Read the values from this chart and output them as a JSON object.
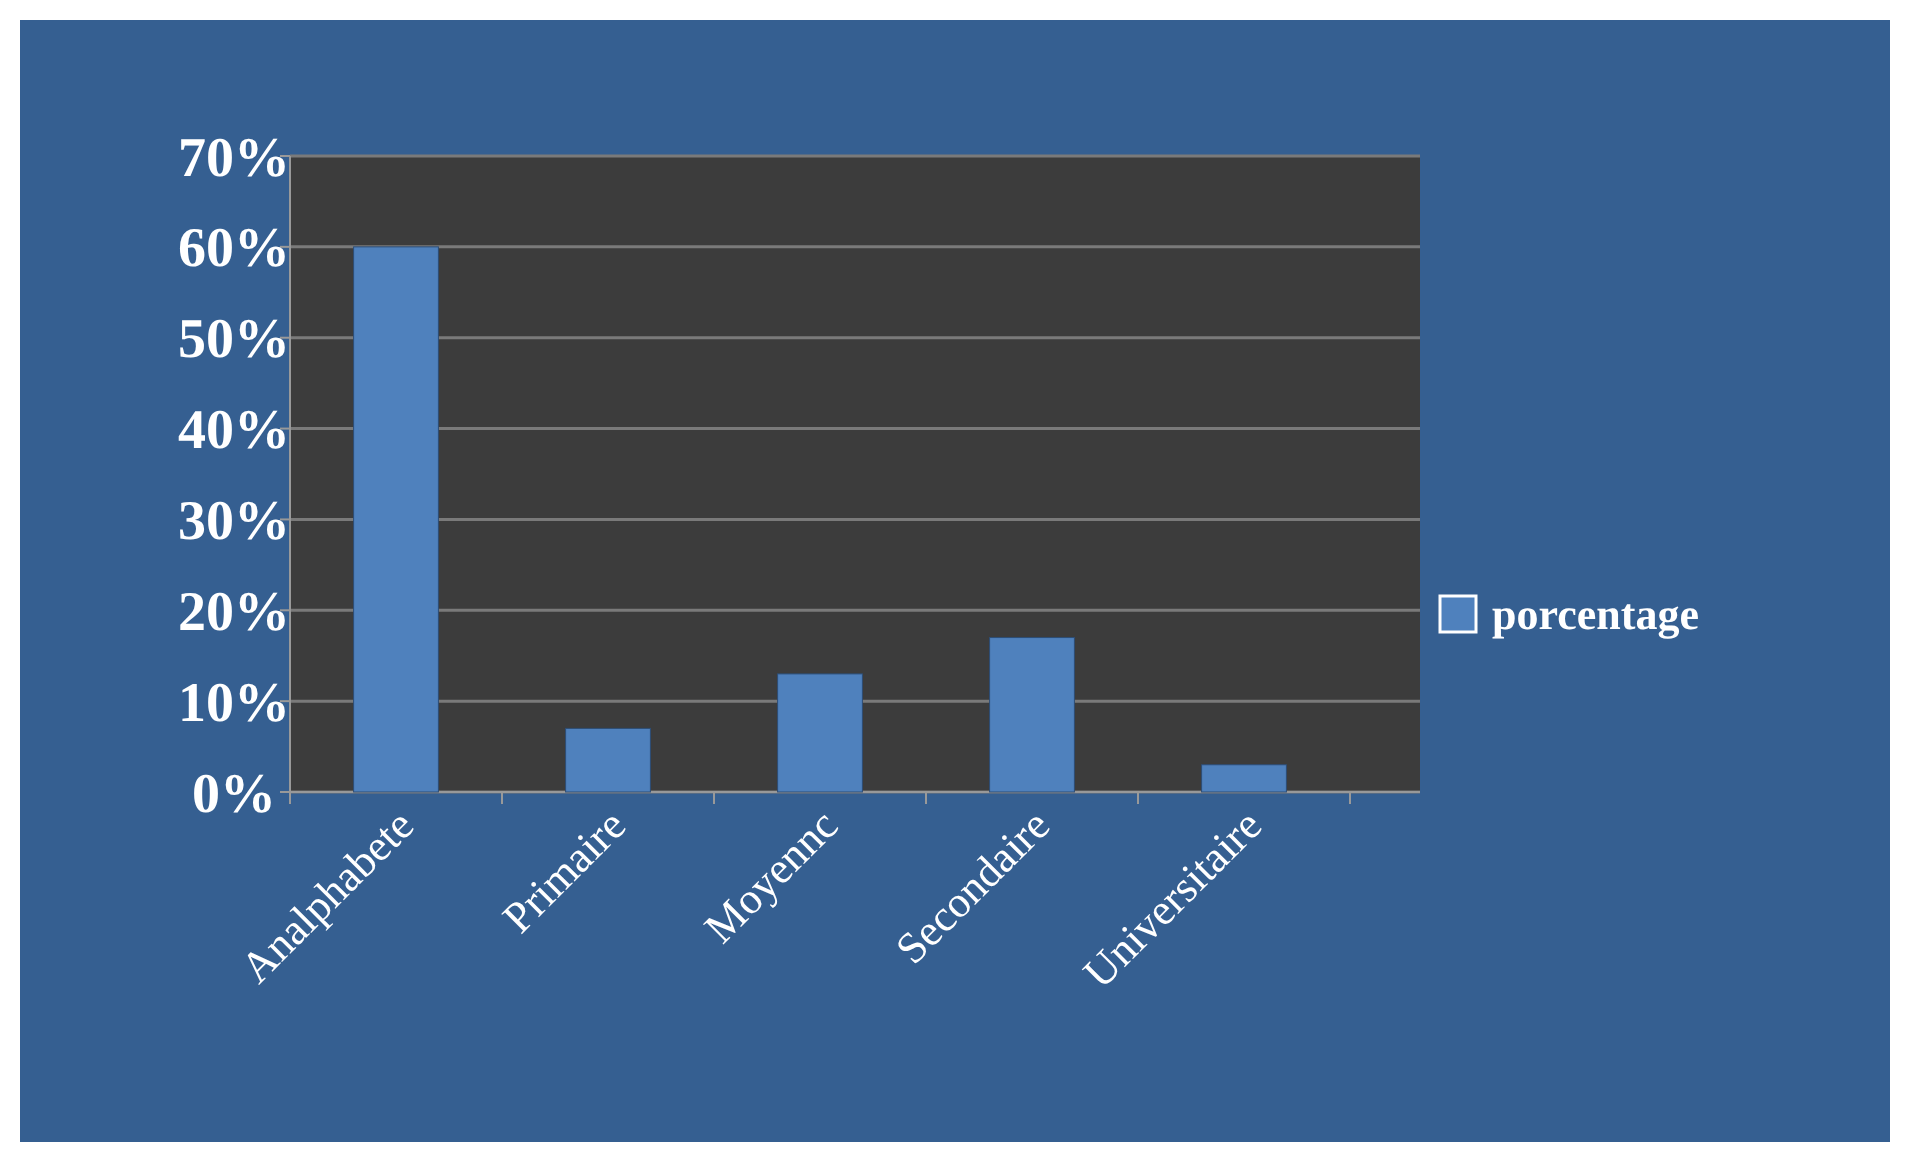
{
  "chart_data": {
    "type": "bar",
    "categories": [
      "Analphabete",
      "Primaire",
      "Moyennc",
      "Secondaire",
      "Universitaire"
    ],
    "series": [
      {
        "name": "porcentage",
        "color": "#4f81bd",
        "values": [
          60,
          7,
          13,
          17,
          3
        ]
      }
    ],
    "ylim": [
      0,
      70
    ],
    "yticks": [
      {
        "value": 0,
        "label": "0%"
      },
      {
        "value": 10,
        "label": "10%"
      },
      {
        "value": 20,
        "label": "20%"
      },
      {
        "value": 30,
        "label": "30%"
      },
      {
        "value": 40,
        "label": "40%"
      },
      {
        "value": 50,
        "label": "50%"
      },
      {
        "value": 60,
        "label": "60%"
      },
      {
        "value": 70,
        "label": "70%"
      }
    ],
    "grid": true,
    "legend": "right"
  }
}
